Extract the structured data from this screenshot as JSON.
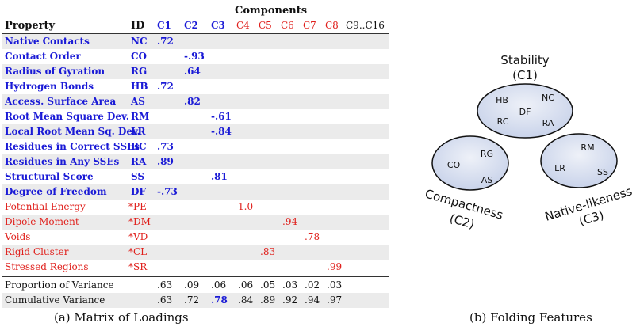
{
  "table": {
    "components_header": "Components",
    "col_property": "Property",
    "col_id": "ID",
    "component_labels": [
      "C1",
      "C2",
      "C3",
      "C4",
      "C5",
      "C6",
      "C7",
      "C8",
      "C9..C16"
    ],
    "rows": [
      {
        "property": "Native Contacts",
        "id": "NC",
        "group": "blue",
        "loadings": [
          ".72",
          "",
          "",
          "",
          "",
          "",
          "",
          "",
          ""
        ]
      },
      {
        "property": "Contact Order",
        "id": "CO",
        "group": "blue",
        "loadings": [
          "",
          "-.93",
          "",
          "",
          "",
          "",
          "",
          "",
          ""
        ]
      },
      {
        "property": "Radius of Gyration",
        "id": "RG",
        "group": "blue",
        "loadings": [
          "",
          ".64",
          "",
          "",
          "",
          "",
          "",
          "",
          ""
        ]
      },
      {
        "property": "Hydrogen Bonds",
        "id": "HB",
        "group": "blue",
        "loadings": [
          ".72",
          "",
          "",
          "",
          "",
          "",
          "",
          "",
          ""
        ]
      },
      {
        "property": "Access. Surface Area",
        "id": "AS",
        "group": "blue",
        "loadings": [
          "",
          ".82",
          "",
          "",
          "",
          "",
          "",
          "",
          ""
        ]
      },
      {
        "property": "Root Mean Square Dev.",
        "id": "RM",
        "group": "blue",
        "loadings": [
          "",
          "",
          "-.61",
          "",
          "",
          "",
          "",
          "",
          ""
        ]
      },
      {
        "property": "Local Root Mean Sq. Dev.",
        "id": "LR",
        "group": "blue",
        "loadings": [
          "",
          "",
          "-.84",
          "",
          "",
          "",
          "",
          "",
          ""
        ]
      },
      {
        "property": "Residues in Correct SSEs",
        "id": "RC",
        "group": "blue",
        "loadings": [
          ".73",
          "",
          "",
          "",
          "",
          "",
          "",
          "",
          ""
        ]
      },
      {
        "property": "Residues in Any SSEs",
        "id": "RA",
        "group": "blue",
        "loadings": [
          ".89",
          "",
          "",
          "",
          "",
          "",
          "",
          "",
          ""
        ]
      },
      {
        "property": "Structural Score",
        "id": "SS",
        "group": "blue",
        "loadings": [
          "",
          "",
          ".81",
          "",
          "",
          "",
          "",
          "",
          ""
        ]
      },
      {
        "property": "Degree of Freedom",
        "id": "DF",
        "group": "blue",
        "loadings": [
          "-.73",
          "",
          "",
          "",
          "",
          "",
          "",
          "",
          ""
        ]
      },
      {
        "property": "Potential Energy",
        "id": "*PE",
        "group": "red",
        "loadings": [
          "",
          "",
          "",
          "1.0",
          "",
          "",
          "",
          "",
          ""
        ]
      },
      {
        "property": "Dipole Moment",
        "id": "*DM",
        "group": "red",
        "loadings": [
          "",
          "",
          "",
          "",
          "",
          ".94",
          "",
          "",
          ""
        ]
      },
      {
        "property": "Voids",
        "id": "*VD",
        "group": "red",
        "loadings": [
          "",
          "",
          "",
          "",
          "",
          "",
          ".78",
          "",
          ""
        ]
      },
      {
        "property": "Rigid Cluster",
        "id": "*CL",
        "group": "red",
        "loadings": [
          "",
          "",
          "",
          "",
          ".83",
          "",
          "",
          "",
          ""
        ]
      },
      {
        "property": "Stressed Regions",
        "id": "*SR",
        "group": "red",
        "loadings": [
          "",
          "",
          "",
          "",
          "",
          "",
          "",
          ".99",
          ""
        ]
      }
    ],
    "summary": [
      {
        "label": "Proportion of Variance",
        "values": [
          ".63",
          ".09",
          ".06",
          ".06",
          ".05",
          ".03",
          ".02",
          ".03",
          ""
        ]
      },
      {
        "label": "Cumulative Variance",
        "values": [
          ".63",
          ".72",
          ".78",
          ".84",
          ".89",
          ".92",
          ".94",
          ".97",
          ""
        ],
        "highlight_index": 2
      }
    ]
  },
  "captions": {
    "left": "(a) Matrix of Loadings",
    "right": "(b) Folding Features"
  },
  "diagram": {
    "clusters": [
      {
        "name": "stability",
        "title": "Stability",
        "subtitle": "(C1)",
        "members": [
          "HB",
          "NC",
          "DF",
          "RC",
          "RA"
        ]
      },
      {
        "name": "compactness",
        "title": "Compactness",
        "subtitle": "(C2)",
        "members": [
          "RG",
          "CO",
          "AS"
        ]
      },
      {
        "name": "native-likeness",
        "title": "Native-likeness",
        "subtitle": "(C3)",
        "members": [
          "RM",
          "LR",
          "SS"
        ]
      }
    ]
  },
  "colors": {
    "blue": "#1a1ad6",
    "red": "#e0201c",
    "shade": "#ebebeb",
    "ellipse_fill": "#d4dcee"
  }
}
